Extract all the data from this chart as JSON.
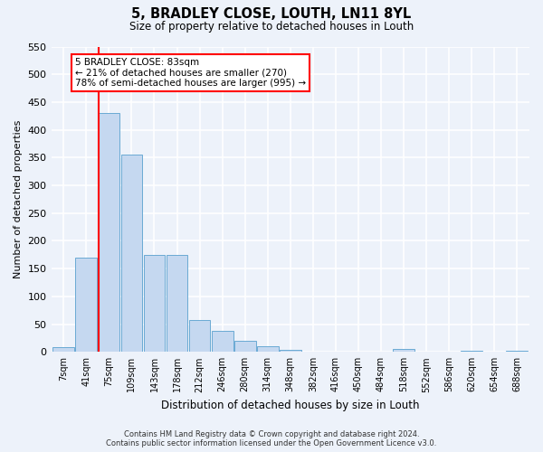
{
  "title": "5, BRADLEY CLOSE, LOUTH, LN11 8YL",
  "subtitle": "Size of property relative to detached houses in Louth",
  "xlabel": "Distribution of detached houses by size in Louth",
  "ylabel": "Number of detached properties",
  "bar_labels": [
    "7sqm",
    "41sqm",
    "75sqm",
    "109sqm",
    "143sqm",
    "178sqm",
    "212sqm",
    "246sqm",
    "280sqm",
    "314sqm",
    "348sqm",
    "382sqm",
    "416sqm",
    "450sqm",
    "484sqm",
    "518sqm",
    "552sqm",
    "586sqm",
    "620sqm",
    "654sqm",
    "688sqm"
  ],
  "bar_values": [
    8,
    170,
    430,
    355,
    175,
    175,
    57,
    38,
    20,
    10,
    4,
    0,
    0,
    1,
    0,
    5,
    0,
    0,
    2,
    0,
    2
  ],
  "bar_color": "#c5d8f0",
  "bar_edge_color": "#6aaad4",
  "ylim": [
    0,
    550
  ],
  "yticks": [
    0,
    50,
    100,
    150,
    200,
    250,
    300,
    350,
    400,
    450,
    500,
    550
  ],
  "vline_x": 2,
  "vline_color": "red",
  "annotation_title": "5 BRADLEY CLOSE: 83sqm",
  "annotation_line1": "← 21% of detached houses are smaller (270)",
  "annotation_line2": "78% of semi-detached houses are larger (995) →",
  "annotation_box_color": "white",
  "annotation_box_edge": "red",
  "footer1": "Contains HM Land Registry data © Crown copyright and database right 2024.",
  "footer2": "Contains public sector information licensed under the Open Government Licence v3.0.",
  "bg_color": "#edf2fa"
}
